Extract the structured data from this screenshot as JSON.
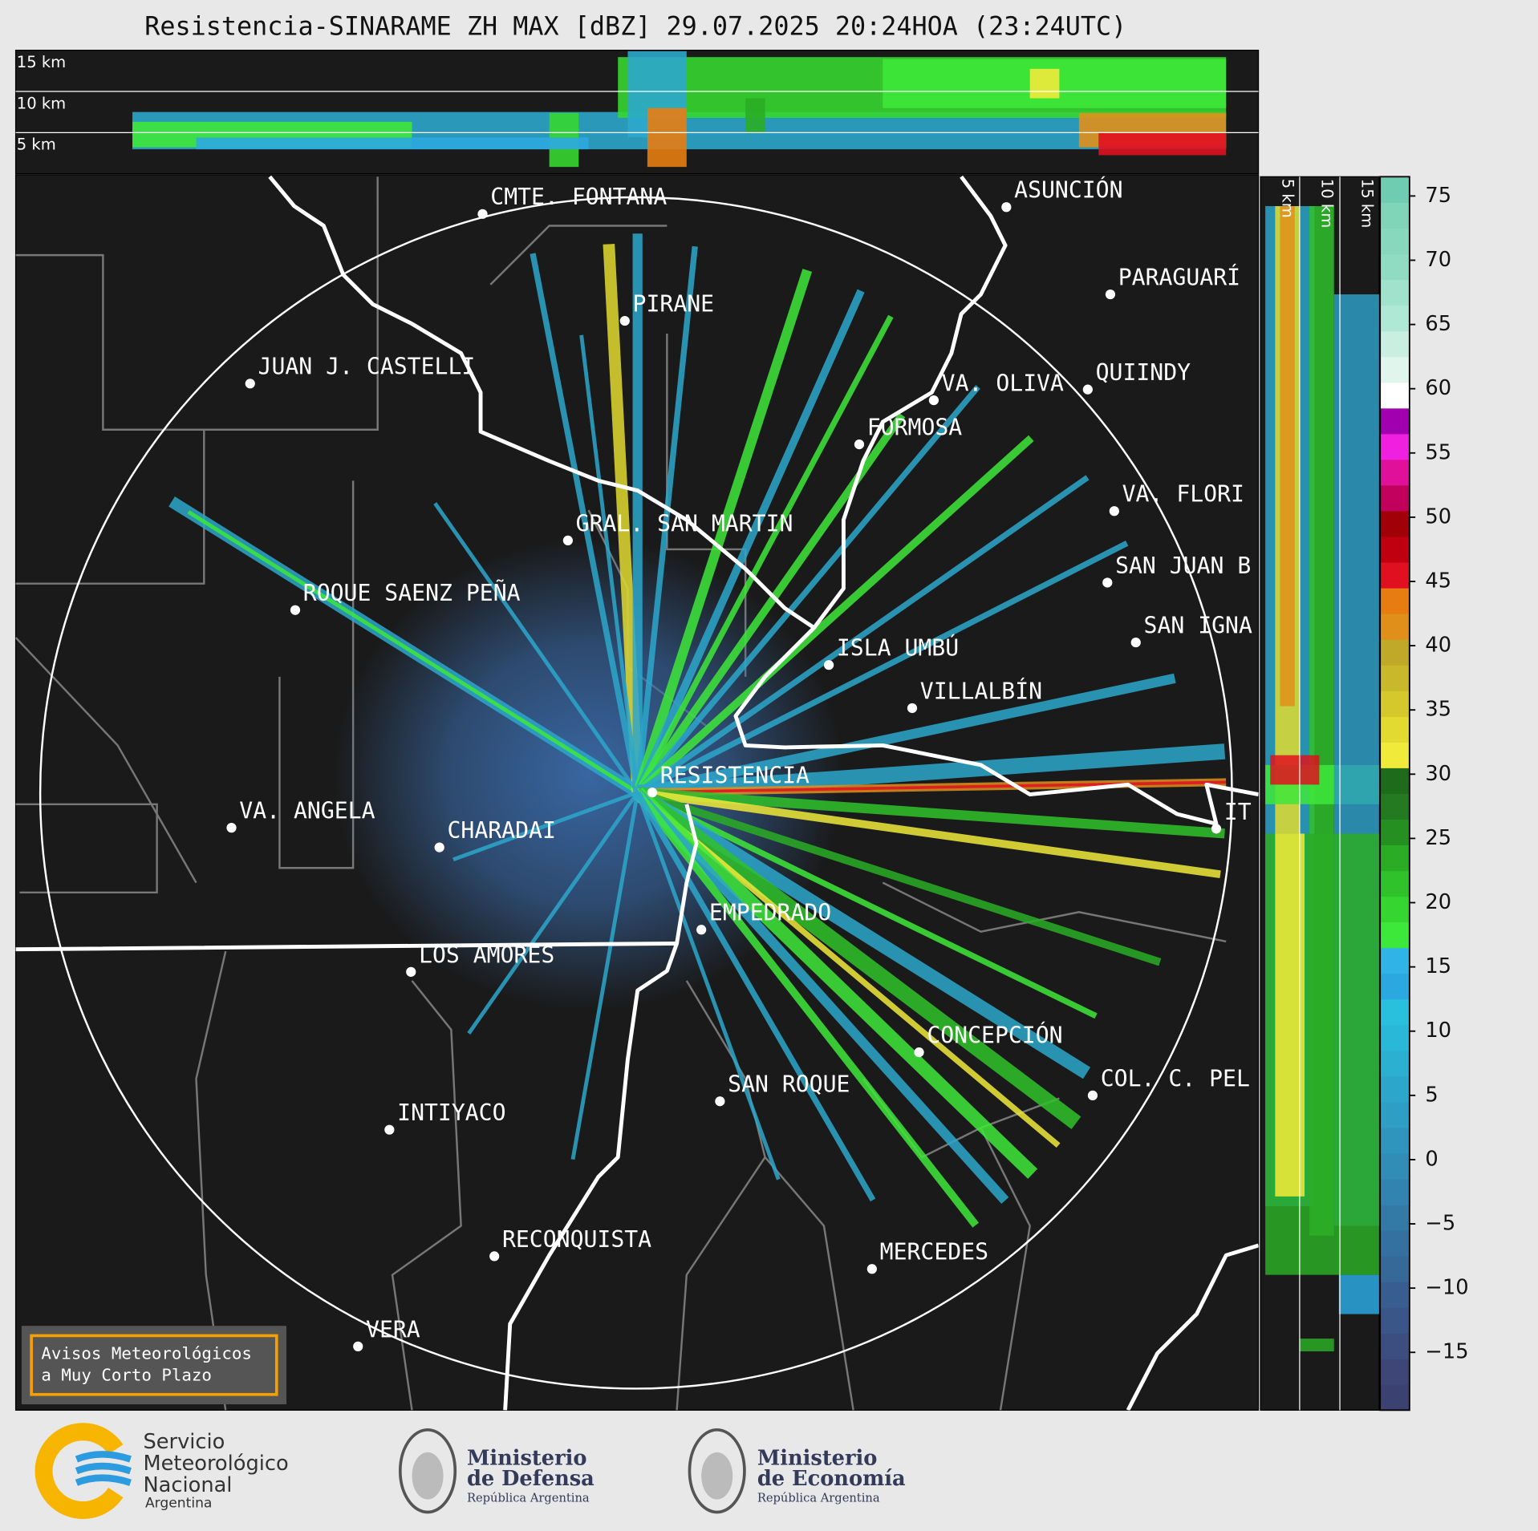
{
  "title": "Resistencia-SINARAME ZH MAX [dBZ] 29.07.2025 20:24HOA (23:24UTC)",
  "top_panel": {
    "height_labels": [
      "15 km",
      "10 km",
      "5 km"
    ]
  },
  "right_panel": {
    "height_labels": [
      "5 km",
      "10 km",
      "15 km"
    ]
  },
  "map": {
    "cities": [
      "CMTE. FONTANA",
      "ASUNCIÓN",
      "PARAGUARÍ",
      "PIRANE",
      "JUAN J. CASTELLI",
      "VA. OLIVA",
      "QUIINDY",
      "FORMOSA",
      "VA. FLORI",
      "GRAL. SAN MARTIN",
      "SAN JUAN B",
      "ROQUE SAENZ PEÑA",
      "SAN IGNA",
      "ISLA UMBÚ",
      "VILLALBÍN",
      "RESISTENCIA",
      "VA. ANGELA",
      "CHARADAI",
      "IT",
      "EMPEDRADO",
      "LOS AMORES",
      "CONCEPCIÓN",
      "SAN ROQUE",
      "COL. C. PEL",
      "INTIYACO",
      "RECONQUISTA",
      "MERCEDES",
      "VERA"
    ]
  },
  "colorbar": {
    "lim": [
      -19.5,
      76.5
    ],
    "ticks": [
      {
        "value": -15,
        "label": "−15"
      },
      {
        "value": -10,
        "label": "−10"
      },
      {
        "value": -5,
        "label": "−5"
      },
      0,
      5,
      10,
      15,
      20,
      25,
      30,
      35,
      40,
      45,
      50,
      55,
      60,
      65,
      70,
      75
    ],
    "colors": [
      "#3b4170",
      "#3d4677",
      "#3c4d80",
      "#3a5688",
      "#385e90",
      "#366898",
      "#3571a0",
      "#337aa7",
      "#3283af",
      "#318cb6",
      "#2f95bd",
      "#2e9ec4",
      "#2ca7cb",
      "#2bb0d2",
      "#2ab8d8",
      "#29c0de",
      "#2ca8e0",
      "#30b4e8",
      "#3ee83a",
      "#35d630",
      "#2fc22a",
      "#2aad25",
      "#268f22",
      "#237a20",
      "#1f6b1c",
      "#f0ea3a",
      "#e2da30",
      "#d4c82c",
      "#c8b82a",
      "#c0a828",
      "#e0901a",
      "#e77d12",
      "#e01020",
      "#c00010",
      "#a00008",
      "#c0005a",
      "#e0109a",
      "#f020e0",
      "#a000b0",
      "#ffffff",
      "#e0f5ec",
      "#c8efe0",
      "#b0e8d6",
      "#a0e2cc",
      "#90dcc2",
      "#88d8be",
      "#80d4b8",
      "#70ccb0"
    ]
  },
  "banner": {
    "lines": [
      "Avisos Meteorológicos",
      "a Muy Corto Plazo"
    ]
  },
  "logos": {
    "smn": [
      "Servicio",
      "Meteorológico",
      "Nacional",
      "Argentina"
    ],
    "defensa": [
      "Ministerio",
      "de Defensa",
      "República Argentina"
    ],
    "economia": [
      "Ministerio",
      "de Economía",
      "República Argentina"
    ]
  }
}
